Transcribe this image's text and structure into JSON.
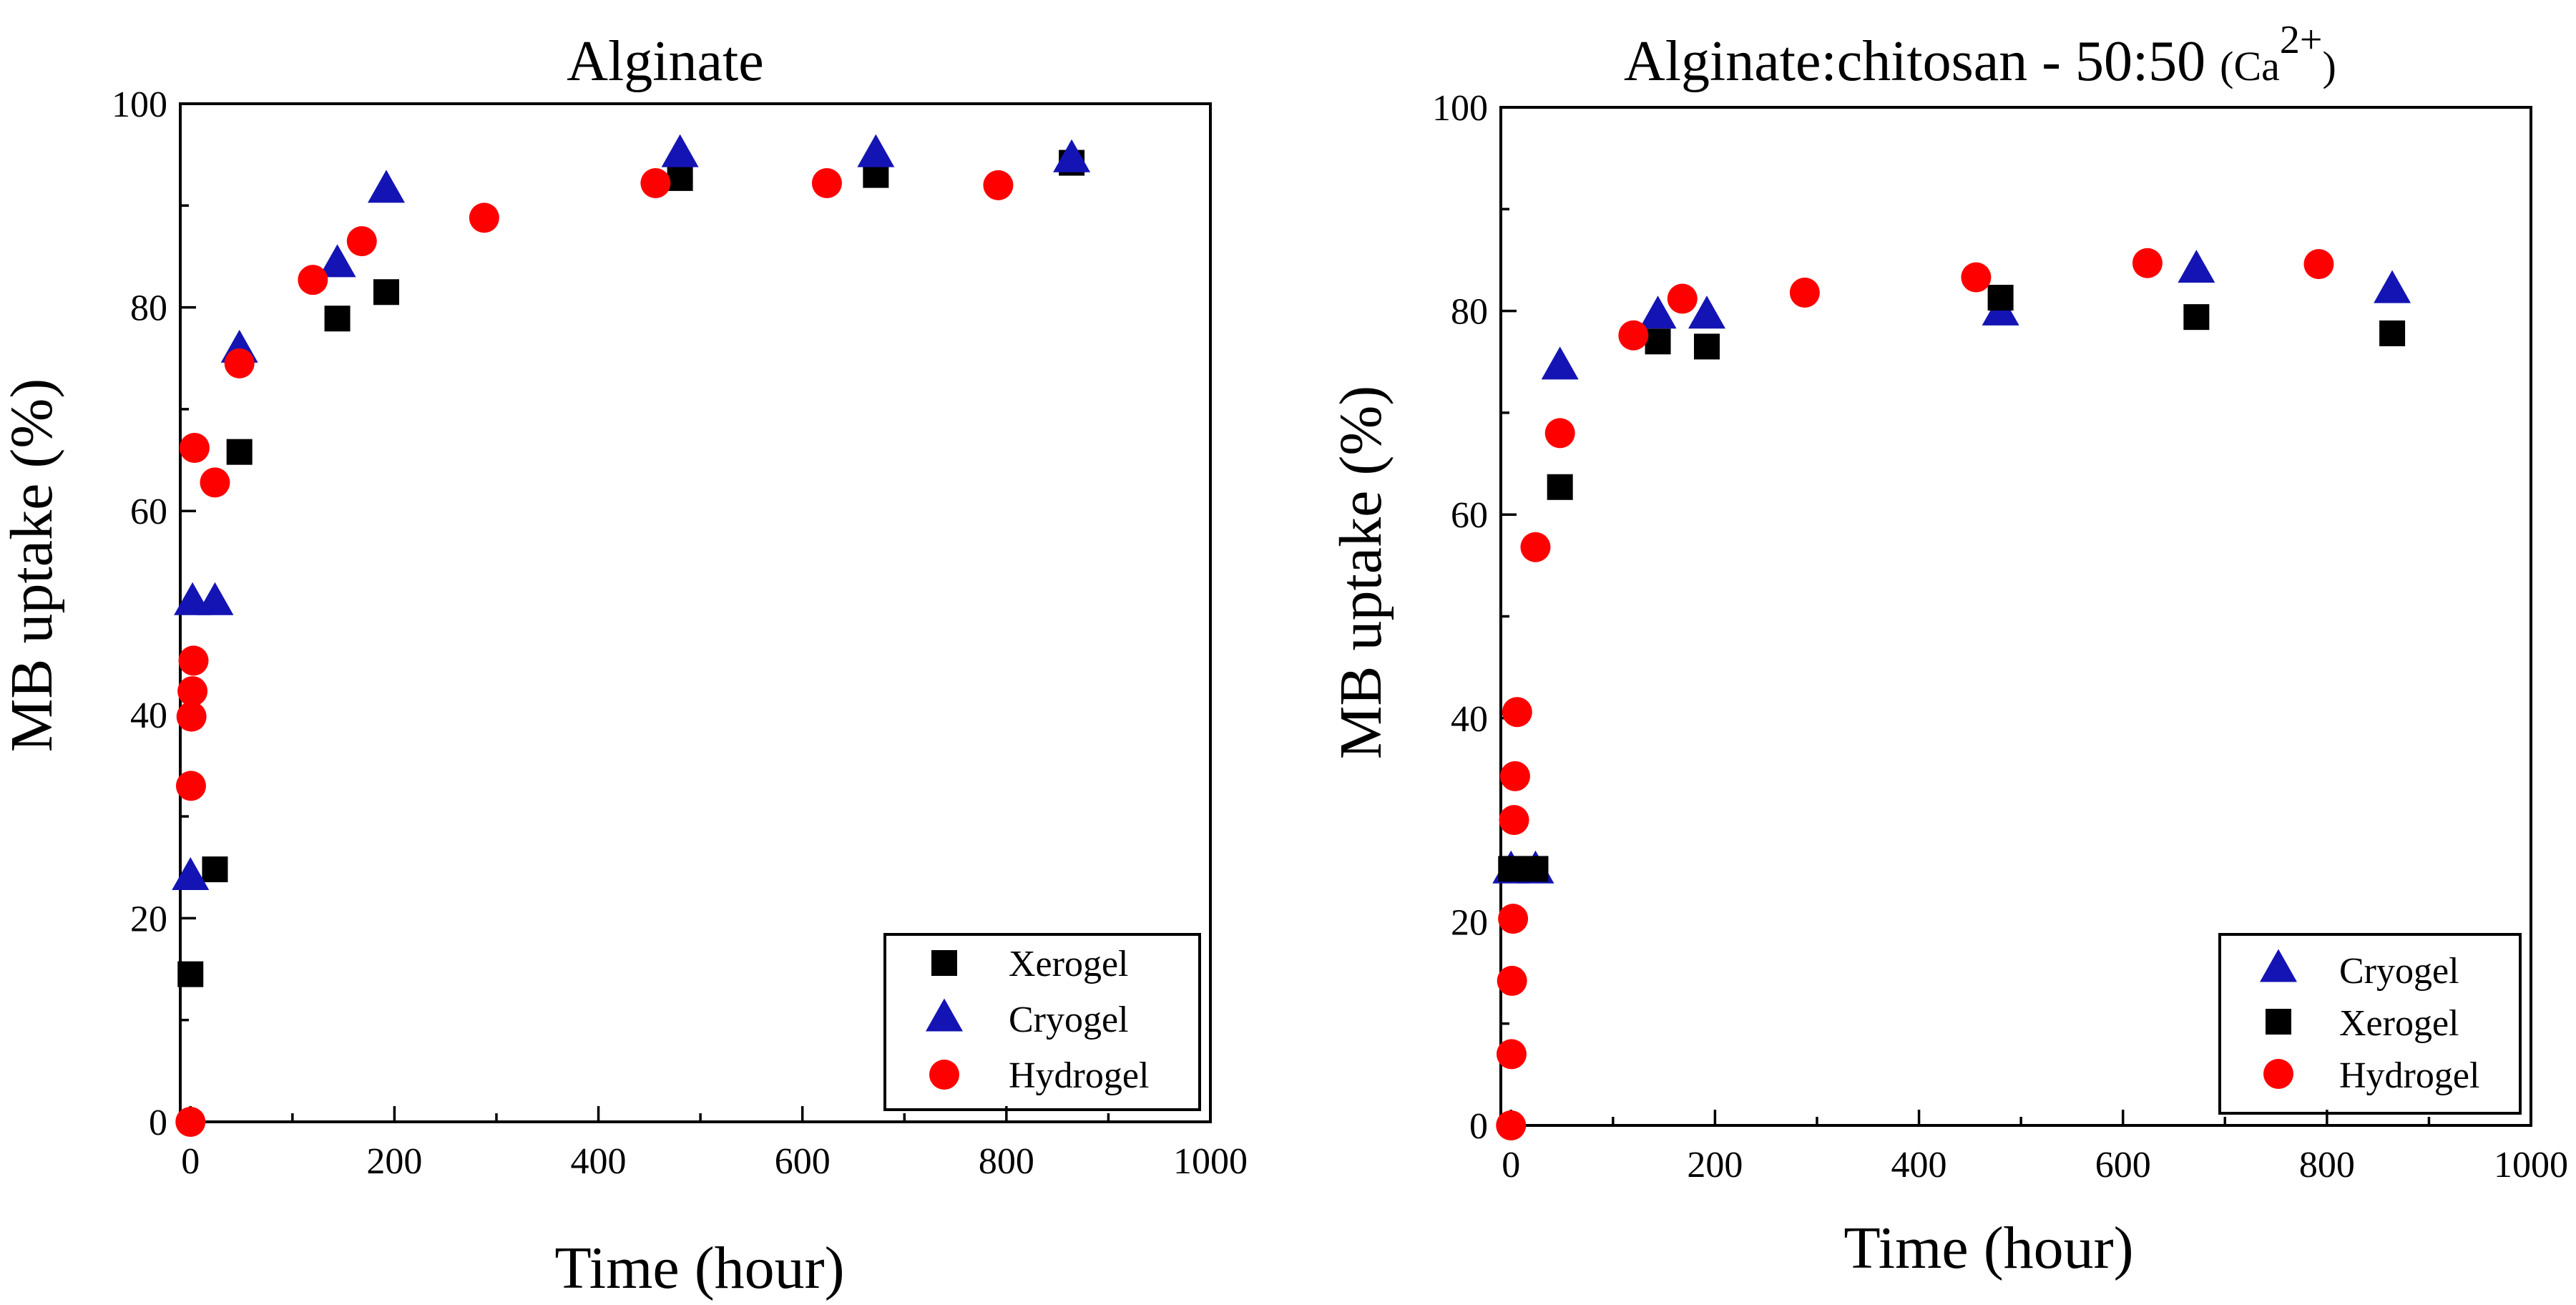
{
  "chart_data": [
    {
      "type": "scatter",
      "title": "Alginate",
      "title_sup": "",
      "title_tail": "",
      "xlabel": "Time (hour)",
      "ylabel": "MB uptake (%)",
      "xlim": [
        -10,
        1000
      ],
      "ylim": [
        0,
        100
      ],
      "xticks": [
        0,
        200,
        400,
        600,
        800,
        1000
      ],
      "yticks": [
        0,
        20,
        40,
        60,
        80,
        100
      ],
      "legend_position": "bottom-right",
      "legend_order": [
        "Xerogel",
        "Cryogel",
        "Hydrogel"
      ],
      "series": [
        {
          "name": "Xerogel",
          "marker": "square",
          "color": "#000000",
          "x": [
            0,
            24,
            48,
            144,
            192,
            480,
            672,
            864
          ],
          "y": [
            14.5,
            24.8,
            65.8,
            78.9,
            81.5,
            92.7,
            93.0,
            94.2
          ]
        },
        {
          "name": "Cryogel",
          "marker": "triangle",
          "color": "#1414b4",
          "x": [
            0,
            2,
            24,
            48,
            144,
            192,
            480,
            672,
            864
          ],
          "y": [
            24.0,
            51.0,
            51.0,
            75.8,
            84.2,
            91.5,
            95.0,
            95.0,
            94.5
          ]
        },
        {
          "name": "Hydrogel",
          "marker": "circle",
          "color": "#ff0000",
          "x": [
            0,
            0.5,
            1,
            2,
            3,
            4,
            24,
            48,
            120,
            168,
            288,
            456,
            624,
            792
          ],
          "y": [
            0,
            33.0,
            39.8,
            42.3,
            45.3,
            66.2,
            62.8,
            74.5,
            82.7,
            86.5,
            88.8,
            92.2,
            92.2,
            92.0
          ]
        }
      ]
    },
    {
      "type": "scatter",
      "title": "Alginate:chitosan - 50:50 ",
      "title_sup": "2+",
      "title_tail": ")",
      "title_paren": "(Ca",
      "xlabel": "Time (hour)",
      "ylabel": "MB uptake (%)",
      "xlim": [
        -10,
        1000
      ],
      "ylim": [
        0,
        100
      ],
      "xticks": [
        0,
        200,
        400,
        600,
        800,
        1000
      ],
      "yticks": [
        0,
        20,
        40,
        60,
        80,
        100
      ],
      "legend_position": "bottom-right",
      "legend_order": [
        "Cryogel",
        "Xerogel",
        "Hydrogel"
      ],
      "series": [
        {
          "name": "Cryogel",
          "marker": "triangle",
          "color": "#1414b4",
          "x": [
            0,
            24,
            48,
            144,
            192,
            480,
            672,
            864
          ],
          "y": [
            25.0,
            25.0,
            74.5,
            79.5,
            79.5,
            79.8,
            84.0,
            82.0
          ]
        },
        {
          "name": "Xerogel",
          "marker": "square",
          "color": "#000000",
          "x": [
            0,
            24,
            48,
            144,
            192,
            480,
            672,
            864
          ],
          "y": [
            25.2,
            25.2,
            62.7,
            77.0,
            76.5,
            81.3,
            79.4,
            77.8
          ]
        },
        {
          "name": "Hydrogel",
          "marker": "circle",
          "color": "#ff0000",
          "x": [
            0,
            0.5,
            1,
            2,
            3,
            4,
            6,
            24,
            48,
            120,
            168,
            288,
            456,
            624,
            792
          ],
          "y": [
            0,
            7.0,
            14.2,
            20.3,
            30.0,
            34.3,
            40.6,
            56.8,
            68.0,
            77.6,
            81.2,
            81.8,
            83.3,
            84.7,
            84.6
          ]
        }
      ]
    }
  ]
}
